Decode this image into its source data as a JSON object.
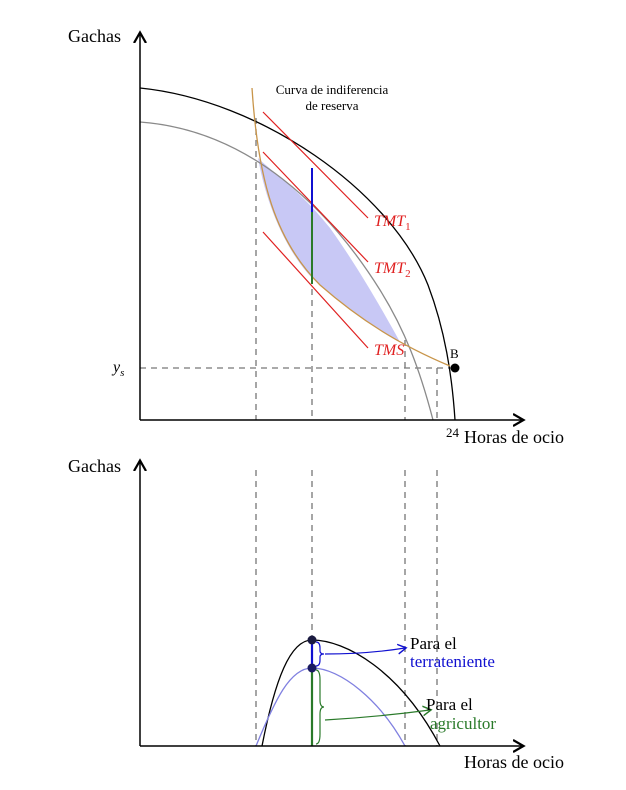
{
  "top_panel": {
    "y_axis_label": "Gachas",
    "x_axis_label": "Horas de ocio",
    "x_max_tick": "24",
    "y_tick_label": "y",
    "y_tick_sub": "s",
    "point_label": "B",
    "annotation_line1": "Curva de indiferencia",
    "annotation_line2": "de reserva",
    "tmt1": "TMT",
    "tmt1_sub": "1",
    "tmt2": "TMT",
    "tmt2_sub": "2",
    "tms": "TMS"
  },
  "bottom_panel": {
    "y_axis_label": "Gachas",
    "x_axis_label": "Horas de ocio",
    "landlord_line1": "Para el",
    "landlord_line2": "terrateniente",
    "farmer_line1": "Para el",
    "farmer_line2": "agricultor"
  },
  "colors": {
    "axis": "#000000",
    "outer_frontier": "#000000",
    "inner_frontier": "#8a8a8a",
    "indifference_curve": "#c8954a",
    "tangent": "#e02020",
    "lens_fill": "#c8c8f5",
    "landlord": "#1010d0",
    "farmer": "#2a7a2a",
    "bottom_inner_curve": "#8080e0",
    "dashed": "#777777"
  }
}
